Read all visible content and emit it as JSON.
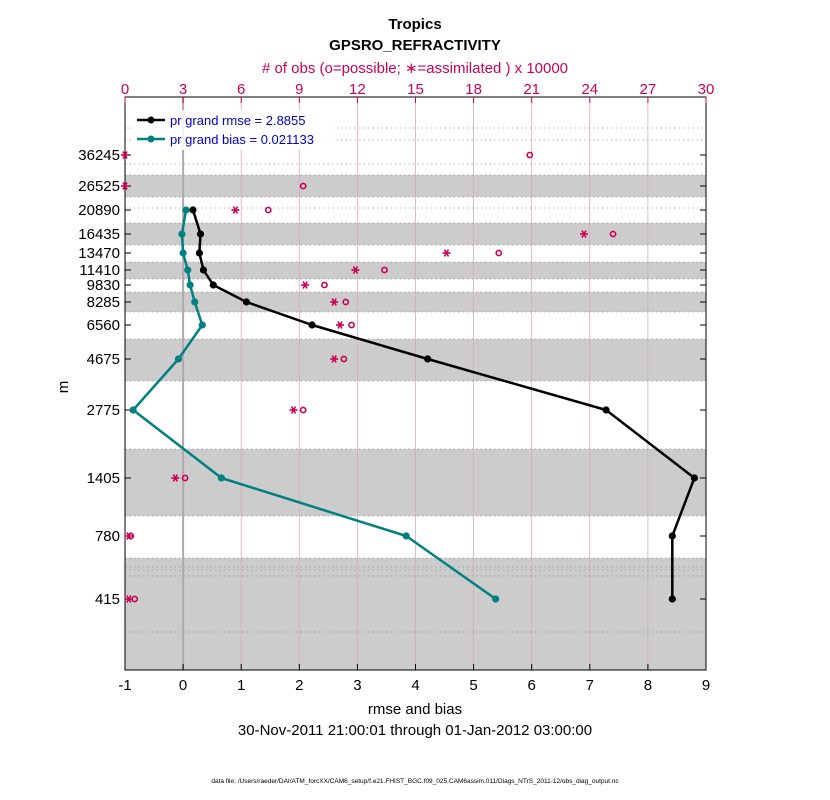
{
  "chart_data": {
    "type": "line",
    "title": "Tropics",
    "subtitle": "GPSRO_REFRACTIVITY",
    "top_axis_label": "# of obs (o=possible; ∗=assimilated ) x 10000",
    "xlabel": "rmse and bias",
    "ylabel": "m",
    "date_range": "30-Nov-2011 21:00:01 through 01-Jan-2012 03:00:00",
    "footer": "data file: /Users/raeder/DAI/ATM_forcXX/CAM6_setup/f.e21.FHIST_BGC.f09_025.CAM6assim.011/Diags_NTrS_2011-12/obs_diag_output.nc",
    "xlim": [
      -1,
      9
    ],
    "xticks": [
      "-1",
      "0",
      "1",
      "2",
      "3",
      "4",
      "5",
      "6",
      "7",
      "8",
      "9"
    ],
    "top_xlim": [
      0,
      30
    ],
    "top_xticks": [
      "0",
      "3",
      "6",
      "9",
      "12",
      "15",
      "18",
      "21",
      "24",
      "27",
      "30"
    ],
    "levels": [
      "36245",
      "26525",
      "20890",
      "16435",
      "13470",
      "11410",
      "9830",
      "8285",
      "6560",
      "4675",
      "2775",
      "1405",
      "780",
      "415"
    ],
    "series": [
      {
        "name": "pr grand rmse = 2.8855",
        "color": "#000000",
        "values": [
          null,
          null,
          0.17,
          0.3,
          0.28,
          0.35,
          0.52,
          1.09,
          2.22,
          4.21,
          7.28,
          8.8,
          8.42,
          8.42
        ]
      },
      {
        "name": "pr grand bias = 0.021133",
        "color": "#008080",
        "values": [
          null,
          null,
          0.05,
          -0.02,
          0.0,
          0.08,
          0.12,
          0.2,
          0.33,
          -0.08,
          -0.86,
          0.66,
          3.84,
          5.38
        ]
      }
    ],
    "obs_possible": [
      20.9,
      9.2,
      7.4,
      25.2,
      19.3,
      13.4,
      10.3,
      11.4,
      11.7,
      11.3,
      9.2,
      3.1,
      0.3,
      0.5
    ],
    "obs_assimilated": [
      0.0,
      0.0,
      5.7,
      23.7,
      16.6,
      11.9,
      9.3,
      10.8,
      11.1,
      10.8,
      8.7,
      2.6,
      0.2,
      0.2
    ],
    "colors": {
      "obs": "#cc0055",
      "legend_text": "#0000cc",
      "band": "#cccccc",
      "zero_line": "#b0a8b0"
    }
  }
}
